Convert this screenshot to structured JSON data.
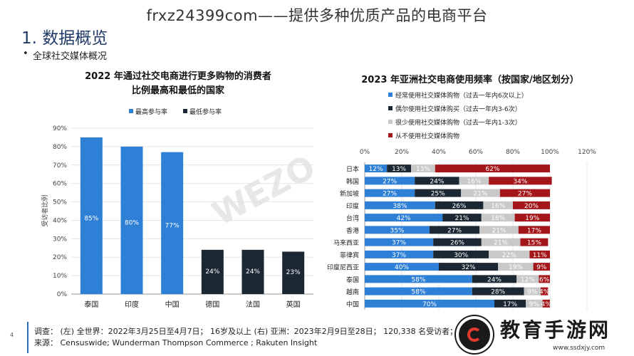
{
  "header": {
    "banner": "frxz24399com——提供多种优质产品的电商平台"
  },
  "slide": {
    "title": "1. 数据概览",
    "bullet_mark": "•",
    "bullet": "全球社交媒体概况",
    "page_number": "4"
  },
  "colors": {
    "blue": "#2e7fd6",
    "navy": "#1b2733",
    "gray": "#c9c9c9",
    "red": "#a4161a"
  },
  "chart_data": [
    {
      "type": "bar",
      "title": "2022 年通过社交电商进行更多购物的消费者比例最高和最低的国家",
      "title_lines": [
        "2022 年通过社交电商进行更多购物的消费者",
        "比例最高和最低的国家"
      ],
      "ylabel": "受访者比例",
      "xlabel": "",
      "ylim": [
        0,
        90
      ],
      "yticks": [
        "0%",
        "10%",
        "20%",
        "30%",
        "40%",
        "50%",
        "60%",
        "70%",
        "80%",
        "90%"
      ],
      "legend_position": "top-left",
      "categories": [
        "泰国",
        "印度",
        "中国",
        "德国",
        "法国",
        "英国"
      ],
      "values": [
        85,
        80,
        77,
        24,
        24,
        23
      ],
      "value_labels": [
        "85%",
        "80%",
        "77%",
        "24%",
        "24%",
        "23%"
      ],
      "series": [
        {
          "name": "最高参与率",
          "color": "#2e7fd6",
          "categories": [
            "泰国",
            "印度",
            "中国"
          ]
        },
        {
          "name": "最低参与率",
          "color": "#1b2733",
          "categories": [
            "德国",
            "法国",
            "英国"
          ]
        }
      ]
    },
    {
      "type": "bar",
      "orientation": "horizontal",
      "stacked": true,
      "title": "2023 年亚洲社交电商使用频率（按国家/地区划分）",
      "xlim": [
        0,
        120
      ],
      "xticks": [
        "0%",
        "20%",
        "40%",
        "60%",
        "80%",
        "100%",
        "120%"
      ],
      "legend_position": "top",
      "categories": [
        "日本",
        "韩国",
        "新加坡",
        "印度",
        "台湾",
        "香港",
        "马来西亚",
        "菲律宾",
        "印度尼西亚",
        "泰国",
        "越南",
        "中国"
      ],
      "series": [
        {
          "name": "经常使用社交媒体购物（过去一年内6次以上）",
          "color": "#2e7fd6",
          "values": [
            12,
            27,
            27,
            38,
            42,
            35,
            37,
            37,
            40,
            58,
            58,
            70
          ]
        },
        {
          "name": "偶尔使用社交媒体购买（过去一年内3-6次）",
          "color": "#1b2733",
          "values": [
            13,
            24,
            25,
            26,
            21,
            27,
            26,
            30,
            32,
            24,
            28,
            17
          ]
        },
        {
          "name": "很少使用社交媒体购物（过去一年内1-3次）",
          "color": "#c9c9c9",
          "values": [
            13,
            16,
            21,
            16,
            18,
            21,
            21,
            22,
            19,
            12,
            9,
            9
          ]
        },
        {
          "name": "从不使用社交媒体购物",
          "color": "#a4161a",
          "values": [
            62,
            34,
            27,
            20,
            19,
            17,
            15,
            11,
            9,
            6,
            4,
            4
          ]
        }
      ]
    }
  ],
  "footer": {
    "line1": "调查：   (左) 全世界：2022年3月25日至4月7日；   16岁及以上  (右) 亚洲：2023年2月9日至28日；  120,338 名受访者；   1",
    "line2": "来源：   Censuswide; Wunderman Thompson Commerce ;   Rakuten Insight"
  },
  "watermark": {
    "text": "教育手游网",
    "url": "www.ssdxjy.com",
    "overlay": "WEZO"
  }
}
